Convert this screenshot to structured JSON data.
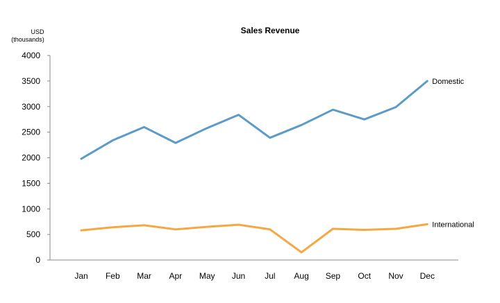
{
  "chart_data": {
    "type": "line",
    "title": "Sales Revenue",
    "ylabel_lines": [
      "USD",
      "(thousands)"
    ],
    "xlabel": "",
    "categories": [
      "Jan",
      "Feb",
      "Mar",
      "Apr",
      "May",
      "Jun",
      "Jul",
      "Aug",
      "Sep",
      "Oct",
      "Nov",
      "Dec"
    ],
    "ylim": [
      0,
      4000
    ],
    "yticks": [
      0,
      500,
      1000,
      1500,
      2000,
      2500,
      3000,
      3500,
      4000
    ],
    "grid": false,
    "legend": "inline-right",
    "series": [
      {
        "name": "Domestic",
        "color": "#5b9bc8",
        "values": [
          1980,
          2340,
          2600,
          2290,
          2580,
          2840,
          2390,
          2640,
          2940,
          2750,
          2990,
          3500
        ]
      },
      {
        "name": "International",
        "color": "#f5a742",
        "values": [
          580,
          640,
          680,
          600,
          650,
          690,
          600,
          150,
          610,
          590,
          610,
          700
        ]
      }
    ]
  }
}
